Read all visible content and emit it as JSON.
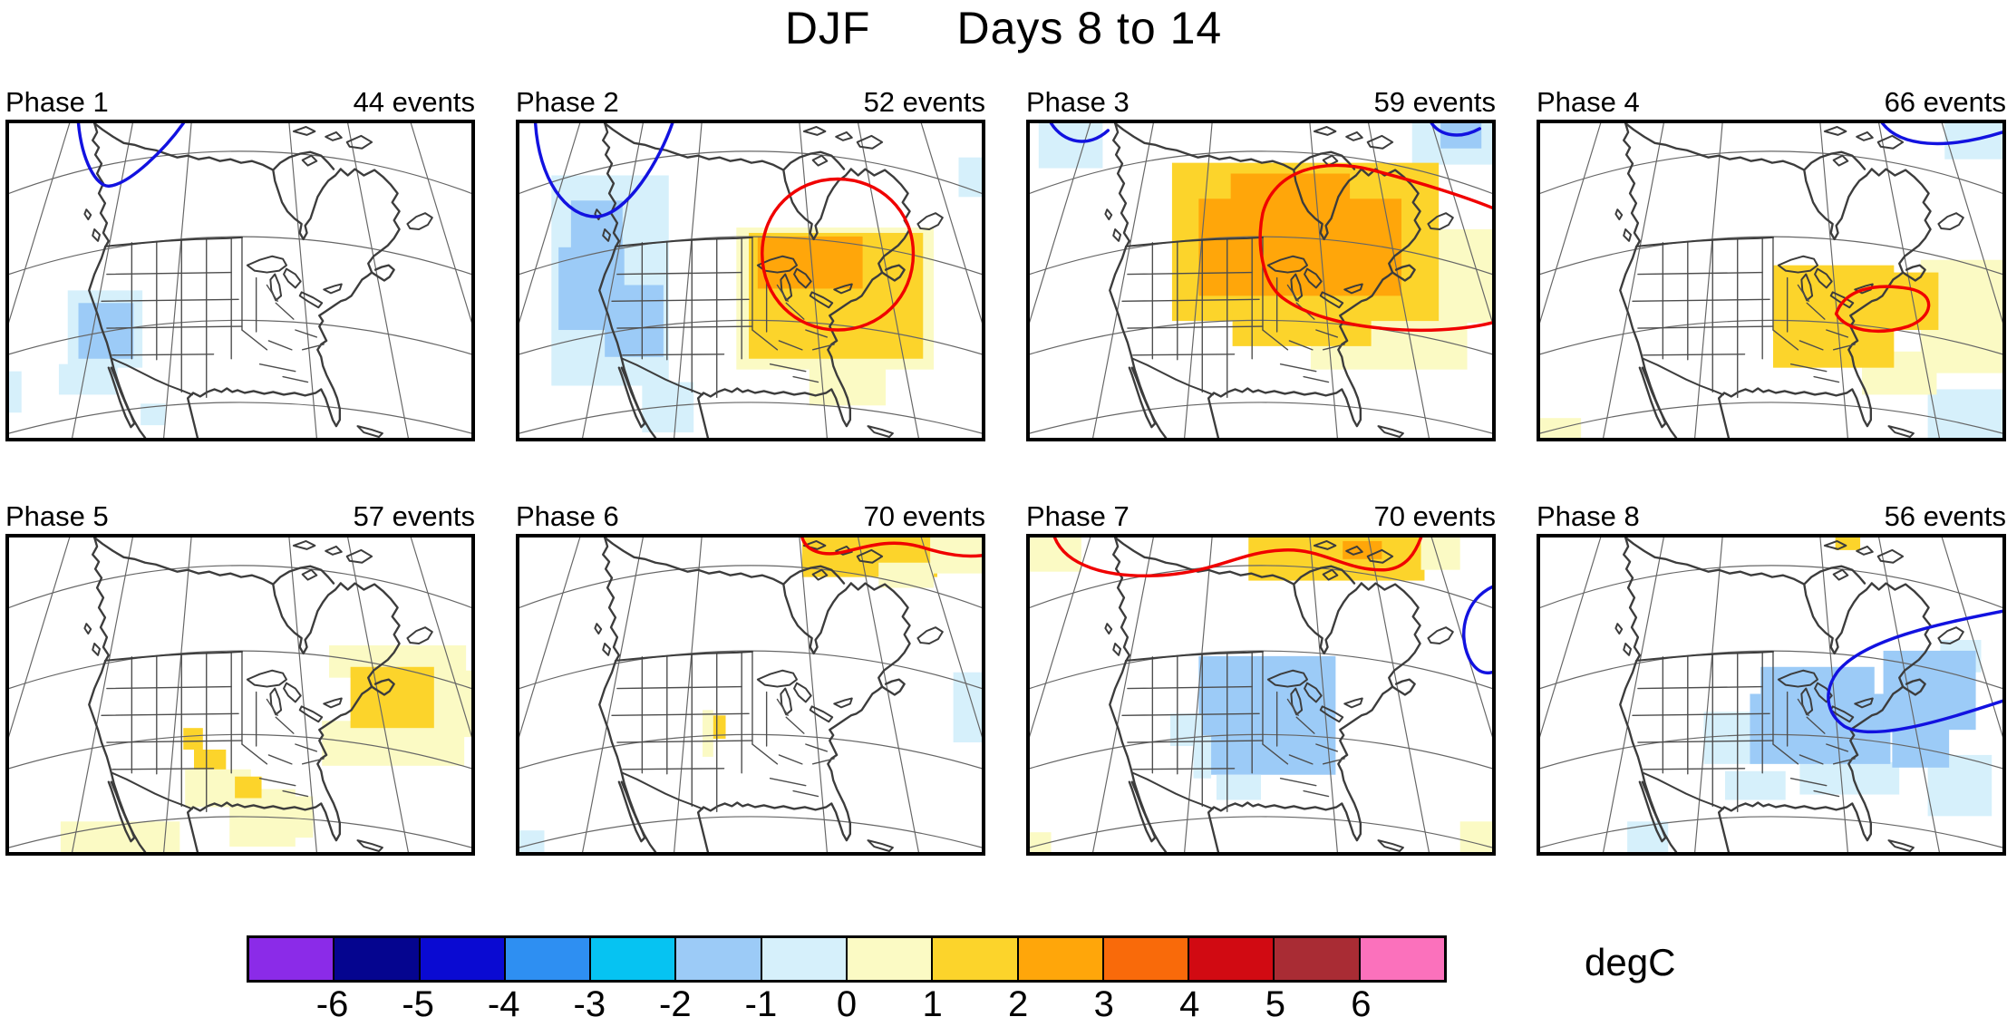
{
  "title": {
    "season": "DJF",
    "period": "Days 8 to 14"
  },
  "palette": {
    "pb": "#D6F0FB",
    "lb": "#9CCBF7",
    "py": "#FBFAC4",
    "yl": "#FCD42B",
    "or": "#FFA60A",
    "red": "#F00000",
    "blue": "#1212E0"
  },
  "colorbar": {
    "ticks": [
      "-6",
      "-5",
      "-4",
      "-3",
      "-2",
      "-1",
      "0",
      "1",
      "2",
      "3",
      "4",
      "5",
      "6"
    ],
    "colors": [
      "#8B2BE8",
      "#05058F",
      "#0A0AD2",
      "#2E8FF2",
      "#06C3F2",
      "#9CCBF7",
      "#D6F0FB",
      "#FBFAC4",
      "#FCD42B",
      "#FFA60A",
      "#F96A0A",
      "#D10A12",
      "#A92C34",
      "#FB71BC"
    ],
    "unit": "degC"
  },
  "panels": [
    {
      "label": "Phase 1",
      "events": "44 events",
      "shade": [
        [
          "pb",
          66,
          186,
          84,
          86
        ],
        [
          "lb",
          78,
          200,
          62,
          62
        ],
        [
          "pb",
          56,
          268,
          66,
          34
        ],
        [
          "pb",
          148,
          312,
          28,
          24
        ],
        [
          "pb",
          0,
          276,
          14,
          46
        ]
      ],
      "contours": [
        [
          "blue",
          "M78,0 C82,42 98,70 112,70 C136,68 176,28 196,0"
        ]
      ]
    },
    {
      "label": "Phase 2",
      "events": "52 events",
      "shade": [
        [
          "pb",
          36,
          58,
          132,
          234
        ],
        [
          "lb",
          58,
          86,
          58,
          54
        ],
        [
          "lb",
          44,
          138,
          74,
          92
        ],
        [
          "lb",
          96,
          180,
          66,
          80
        ],
        [
          "pb",
          138,
          288,
          58,
          56
        ],
        [
          "pb",
          494,
          38,
          26,
          44
        ],
        [
          "py",
          244,
          116,
          222,
          158
        ],
        [
          "py",
          326,
          248,
          86,
          66
        ],
        [
          "py",
          398,
          202,
          58,
          64
        ],
        [
          "yl",
          258,
          122,
          196,
          140
        ],
        [
          "or",
          268,
          126,
          118,
          58
        ]
      ],
      "contours": [
        [
          "blue",
          "M18,0 C22,62 52,104 86,104 C122,102 158,40 172,0"
        ],
        [
          "red",
          "M273,145 C273,97 311,62 358,62 C405,62 443,97 443,145 C443,194 405,230 358,230 C311,230 273,194 273,145"
        ]
      ]
    },
    {
      "label": "Phase 3",
      "events": "59 events",
      "shade": [
        [
          "pb",
          10,
          0,
          72,
          50
        ],
        [
          "pb",
          430,
          0,
          90,
          46
        ],
        [
          "lb",
          462,
          0,
          46,
          28
        ],
        [
          "py",
          316,
          212,
          176,
          62
        ],
        [
          "py",
          443,
          118,
          77,
          104
        ],
        [
          "yl",
          160,
          44,
          300,
          176
        ],
        [
          "yl",
          228,
          198,
          156,
          50
        ],
        [
          "or",
          190,
          84,
          228,
          108
        ],
        [
          "or",
          226,
          56,
          134,
          42
        ]
      ],
      "contours": [
        [
          "blue",
          "M24,0 C38,22 66,28 88,8"
        ],
        [
          "blue",
          "M452,0 C462,14 484,18 506,6"
        ],
        [
          "red",
          "M262,100 C275,52 330,38 385,52 C440,66 490,82 520,94 M520,222 C455,238 335,232 284,194 C261,176 255,134 262,100"
        ]
      ]
    },
    {
      "label": "Phase 4",
      "events": "66 events",
      "shade": [
        [
          "pb",
          455,
          0,
          65,
          40
        ],
        [
          "pb",
          436,
          296,
          84,
          54
        ],
        [
          "py",
          428,
          152,
          92,
          126
        ],
        [
          "py",
          0,
          328,
          46,
          22
        ],
        [
          "py",
          362,
          254,
          84,
          48
        ],
        [
          "yl",
          262,
          158,
          136,
          114
        ],
        [
          "yl",
          396,
          166,
          52,
          64
        ]
      ],
      "contours": [
        [
          "blue",
          "M385,0 C405,26 455,30 520,10"
        ],
        [
          "red",
          "M333,212 C342,186 374,177 415,184 C447,190 442,216 414,226 C378,237 343,230 333,212"
        ]
      ]
    },
    {
      "label": "Phase 5",
      "events": "57 events",
      "shade": [
        [
          "py",
          360,
          120,
          154,
          36
        ],
        [
          "py",
          352,
          204,
          160,
          50
        ],
        [
          "py",
          476,
          148,
          44,
          74
        ],
        [
          "yl",
          384,
          144,
          94,
          68
        ],
        [
          "yl",
          196,
          212,
          22,
          24
        ],
        [
          "yl",
          208,
          236,
          36,
          30
        ],
        [
          "py",
          198,
          258,
          74,
          42
        ],
        [
          "py",
          248,
          280,
          74,
          64
        ],
        [
          "py",
          58,
          316,
          134,
          34
        ],
        [
          "py",
          294,
          288,
          48,
          46
        ],
        [
          "yl",
          254,
          266,
          30,
          24
        ]
      ],
      "contours": []
    },
    {
      "label": "Phase 6",
      "events": "70 events",
      "shade": [
        [
          "yl",
          318,
          0,
          152,
          44
        ],
        [
          "py",
          462,
          0,
          58,
          40
        ],
        [
          "py",
          404,
          28,
          62,
          28
        ],
        [
          "yl",
          214,
          198,
          18,
          26
        ],
        [
          "py",
          206,
          192,
          12,
          52
        ],
        [
          "pb",
          488,
          150,
          32,
          78
        ],
        [
          "pb",
          0,
          326,
          28,
          24
        ]
      ],
      "contours": [
        [
          "red",
          "M318,0 C322,14 340,22 365,16 C398,8 420,2 450,10 C482,20 502,22 520,20"
        ]
      ]
    },
    {
      "label": "Phase 7",
      "events": "70 events",
      "shade": [
        [
          "py",
          0,
          0,
          58,
          38
        ],
        [
          "yl",
          246,
          0,
          198,
          48
        ],
        [
          "or",
          352,
          4,
          44,
          20
        ],
        [
          "py",
          440,
          0,
          44,
          36
        ],
        [
          "lb",
          190,
          132,
          154,
          132
        ],
        [
          "pb",
          158,
          196,
          36,
          36
        ],
        [
          "pb",
          184,
          220,
          20,
          48
        ],
        [
          "pb",
          210,
          264,
          50,
          28
        ],
        [
          "py",
          0,
          328,
          24,
          22
        ],
        [
          "py",
          484,
          316,
          36,
          34
        ]
      ],
      "contours": [
        [
          "red",
          "M28,0 C40,30 84,46 150,42 C214,37 236,16 286,14 C330,12 356,38 400,36 C424,34 434,16 440,0"
        ],
        [
          "blue",
          "M520,55 C492,68 480,104 494,134 C502,150 512,152 520,150"
        ]
      ]
    },
    {
      "label": "Phase 8",
      "events": "56 events",
      "shade": [
        [
          "yl",
          332,
          0,
          28,
          14
        ],
        [
          "pb",
          184,
          194,
          66,
          58
        ],
        [
          "pb",
          208,
          260,
          68,
          32
        ],
        [
          "pb",
          98,
          316,
          46,
          34
        ],
        [
          "pb",
          436,
          242,
          72,
          68
        ],
        [
          "pb",
          292,
          250,
          112,
          36
        ],
        [
          "pb",
          450,
          114,
          46,
          36
        ],
        [
          "lb",
          248,
          144,
          128,
          48
        ],
        [
          "lb",
          236,
          174,
          158,
          78
        ],
        [
          "lb",
          386,
          126,
          104,
          88
        ],
        [
          "lb",
          396,
          210,
          64,
          46
        ]
      ],
      "contours": [
        [
          "blue",
          "M520,82 C448,96 362,114 334,150 C318,172 322,196 342,210 C374,228 452,204 520,182"
        ]
      ]
    }
  ],
  "chart_data": {
    "type": "heatmap",
    "title": "DJF    Days 8 to 14",
    "season": "DJF",
    "lead_window": "Days 8 to 14",
    "unit": "degC",
    "layout": "4x2 grid of North America composite temperature-anomaly maps by MJO phase; shared discrete colorbar below; red/blue contours mark significant warm/cold regions",
    "colorbar_boundaries": [
      -6,
      -5,
      -4,
      -3,
      -2,
      -1,
      0,
      1,
      2,
      3,
      4,
      5,
      6
    ],
    "colorbar_colors": [
      "#8B2BE8",
      "#05058F",
      "#0A0AD2",
      "#2E8FF2",
      "#06C3F2",
      "#9CCBF7",
      "#D6F0FB",
      "#FBFAC4",
      "#FCD42B",
      "#FFA60A",
      "#F96A0A",
      "#D10A12",
      "#A92C34",
      "#FB71BC"
    ],
    "panels": [
      {
        "phase": "Phase 1",
        "events": 44,
        "anomaly_summary": "Cool -1 to -2 degC anomaly over California and the Great Basin; blue significance contour over the Gulf of Alaska."
      },
      {
        "phase": "Phase 2",
        "events": 52,
        "anomaly_summary": "Cool -1 to -2 degC band along the west coast; warm +1 to +3 degC anomaly over the Great Lakes and Northeast enclosed by a red contour; blue contour near Alaska."
      },
      {
        "phase": "Phase 3",
        "events": 59,
        "anomaly_summary": "Strong warm +2 to +3 degC anomaly centered on Hudson Bay and the Great Lakes extending to the Northeast, outlined by a large red contour."
      },
      {
        "phase": "Phase 4",
        "events": 66,
        "anomaly_summary": "Warm +1 to +2 degC anomaly over the Ohio Valley and mid-Atlantic with a small red contour; blue contour over the far northeast."
      },
      {
        "phase": "Phase 5",
        "events": 57,
        "anomaly_summary": "Warm +1 to +2 degC anomaly offshore of New England; scattered weak warm spots over the southern Plains and Gulf coast."
      },
      {
        "phase": "Phase 6",
        "events": 70,
        "anomaly_summary": "Mostly neutral; warm anomaly with red contour along the top edge near Baffin Island; tiny warm spot near Nebraska/Colorado."
      },
      {
        "phase": "Phase 7",
        "events": 70,
        "anomaly_summary": "Warm anomaly with red contour across the Canadian Arctic; cool -1 to -2 degC anomaly over the central United States; blue contour at the east edge."
      },
      {
        "phase": "Phase 8",
        "events": 56,
        "anomaly_summary": "Cool -1 to -2 degC anomaly from the Midwest through the mid-Atlantic into the western Atlantic, with a blue significance contour."
      }
    ]
  }
}
